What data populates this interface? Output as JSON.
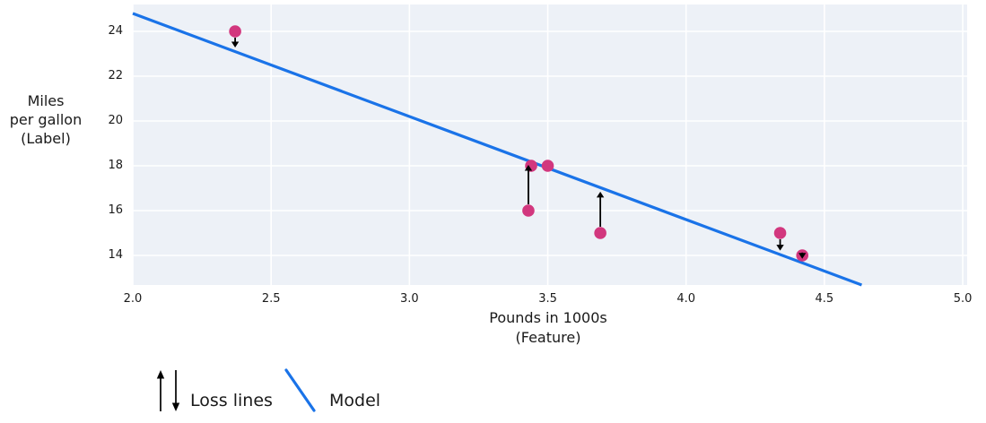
{
  "colors": {
    "background": "#ffffff",
    "plot_background": "#edf1f7",
    "grid": "#ffffff",
    "model_line": "#1a73e8",
    "point": "#d2377e",
    "loss_arrow": "#000000",
    "text": "#1a1a1a"
  },
  "chart_data": {
    "type": "scatter",
    "xlabel_lines": [
      "Pounds in 1000s",
      "(Feature)"
    ],
    "ylabel_lines": [
      "Miles",
      "per gallon",
      "(Label)"
    ],
    "xlim": [
      2.0,
      5.016
    ],
    "ylim": [
      12.68,
      25.2
    ],
    "grid": true,
    "xticks": [
      {
        "value": 2.0,
        "label": "2.0"
      },
      {
        "value": 2.5,
        "label": "2.5"
      },
      {
        "value": 3.0,
        "label": "3.0"
      },
      {
        "value": 3.5,
        "label": "3.5"
      },
      {
        "value": 4.0,
        "label": "4.0"
      },
      {
        "value": 4.5,
        "label": "4.5"
      },
      {
        "value": 5.0,
        "label": "5.0"
      }
    ],
    "yticks": [
      {
        "value": 14,
        "label": "14"
      },
      {
        "value": 16,
        "label": "16"
      },
      {
        "value": 18,
        "label": "18"
      },
      {
        "value": 20,
        "label": "20"
      },
      {
        "value": 22,
        "label": "22"
      },
      {
        "value": 24,
        "label": "24"
      }
    ],
    "points": [
      {
        "x": 2.37,
        "y": 24,
        "loss_arrow": true
      },
      {
        "x": 3.43,
        "y": 16,
        "loss_arrow": true
      },
      {
        "x": 3.44,
        "y": 18,
        "loss_arrow": false
      },
      {
        "x": 3.5,
        "y": 18,
        "loss_arrow": false
      },
      {
        "x": 3.69,
        "y": 15,
        "loss_arrow": true
      },
      {
        "x": 4.34,
        "y": 15,
        "loss_arrow": true
      },
      {
        "x": 4.42,
        "y": 14,
        "loss_arrow": true
      }
    ],
    "model": {
      "slope": -4.6,
      "intercept": 34
    },
    "legend": {
      "position": "bottom-left",
      "loss_label": "Loss lines",
      "loss_icon": "up-down-arrows",
      "model_label": "Model",
      "model_icon": "line-segment"
    }
  }
}
